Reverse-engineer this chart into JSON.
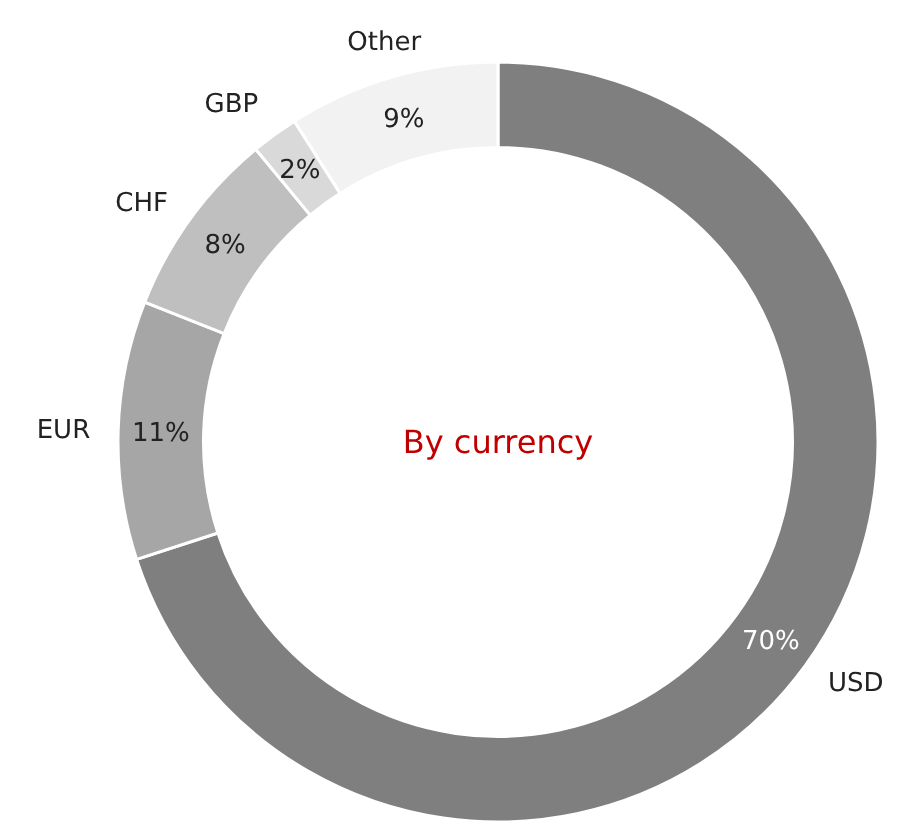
{
  "chart_data": {
    "type": "donut",
    "title": "By currency",
    "categories": [
      "USD",
      "EUR",
      "CHF",
      "GBP",
      "Other"
    ],
    "values": [
      70,
      11,
      8,
      2,
      9
    ],
    "value_labels": [
      "70%",
      "11%",
      "8%",
      "2%",
      "9%"
    ],
    "colors": [
      "#7f7f7f",
      "#a6a6a6",
      "#bfbfbf",
      "#d9d9d9",
      "#f2f2f2"
    ]
  }
}
